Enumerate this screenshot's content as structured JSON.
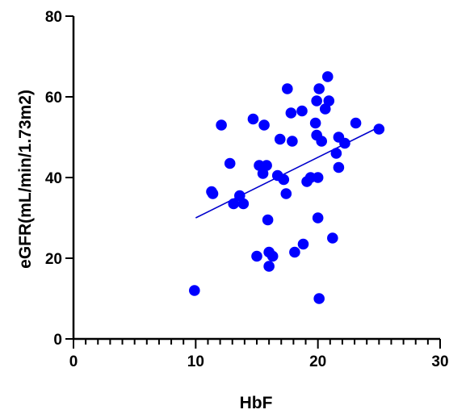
{
  "chart_data": {
    "type": "scatter",
    "title": "",
    "xlabel": "HbF",
    "ylabel": "eGFR(mL/min/1.73m2)",
    "xlim": [
      0,
      30
    ],
    "ylim": [
      0,
      80
    ],
    "x_major_ticks": [
      0,
      10,
      20,
      30
    ],
    "x_minor_step": 1,
    "y_major_ticks": [
      0,
      20,
      40,
      60,
      80
    ],
    "x_tick_labels": [
      "0",
      "10",
      "20",
      "30"
    ],
    "y_tick_labels": [
      "0",
      "20",
      "40",
      "60",
      "80"
    ],
    "grid": false,
    "legend": "none",
    "point_color": "#0000ff",
    "line_color": "#0000cc",
    "points": [
      {
        "x": 9.9,
        "y": 12
      },
      {
        "x": 11.3,
        "y": 36.5
      },
      {
        "x": 11.4,
        "y": 36
      },
      {
        "x": 12.1,
        "y": 53
      },
      {
        "x": 12.8,
        "y": 43.5
      },
      {
        "x": 13.1,
        "y": 33.5
      },
      {
        "x": 13.6,
        "y": 35.5
      },
      {
        "x": 13.9,
        "y": 33.5
      },
      {
        "x": 14.7,
        "y": 54.5
      },
      {
        "x": 15.0,
        "y": 20.5
      },
      {
        "x": 15.2,
        "y": 43
      },
      {
        "x": 15.5,
        "y": 41
      },
      {
        "x": 15.6,
        "y": 53
      },
      {
        "x": 15.8,
        "y": 43
      },
      {
        "x": 15.9,
        "y": 29.5
      },
      {
        "x": 16.0,
        "y": 21.5
      },
      {
        "x": 16.0,
        "y": 18
      },
      {
        "x": 16.3,
        "y": 20.5
      },
      {
        "x": 16.7,
        "y": 40.5
      },
      {
        "x": 16.9,
        "y": 49.5
      },
      {
        "x": 17.2,
        "y": 39.5
      },
      {
        "x": 17.4,
        "y": 36
      },
      {
        "x": 17.5,
        "y": 62
      },
      {
        "x": 17.8,
        "y": 56
      },
      {
        "x": 17.9,
        "y": 49
      },
      {
        "x": 18.1,
        "y": 21.5
      },
      {
        "x": 18.7,
        "y": 56.5
      },
      {
        "x": 18.8,
        "y": 23.5
      },
      {
        "x": 19.1,
        "y": 39
      },
      {
        "x": 19.4,
        "y": 40
      },
      {
        "x": 19.8,
        "y": 53.5
      },
      {
        "x": 19.9,
        "y": 59
      },
      {
        "x": 19.9,
        "y": 50.5
      },
      {
        "x": 20.0,
        "y": 40
      },
      {
        "x": 20.0,
        "y": 30
      },
      {
        "x": 20.1,
        "y": 10
      },
      {
        "x": 20.1,
        "y": 62
      },
      {
        "x": 20.3,
        "y": 49
      },
      {
        "x": 20.6,
        "y": 57
      },
      {
        "x": 20.8,
        "y": 65
      },
      {
        "x": 20.9,
        "y": 59
      },
      {
        "x": 21.2,
        "y": 25
      },
      {
        "x": 21.5,
        "y": 46
      },
      {
        "x": 21.7,
        "y": 50
      },
      {
        "x": 21.7,
        "y": 42.5
      },
      {
        "x": 22.2,
        "y": 48.5
      },
      {
        "x": 23.1,
        "y": 53.5
      },
      {
        "x": 25.0,
        "y": 52
      }
    ],
    "regression_line": {
      "x": [
        10,
        25
      ],
      "y": [
        30,
        52.5
      ]
    }
  }
}
